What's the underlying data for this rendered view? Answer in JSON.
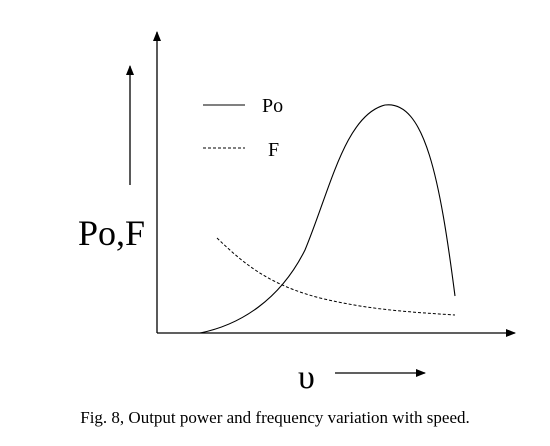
{
  "axes": {
    "y_label": "Po,F",
    "x_label": "υ"
  },
  "legend": {
    "items": [
      {
        "label": "Po"
      },
      {
        "label": "F"
      }
    ]
  },
  "caption": "Fig. 8, Output power and frequency variation with speed."
}
